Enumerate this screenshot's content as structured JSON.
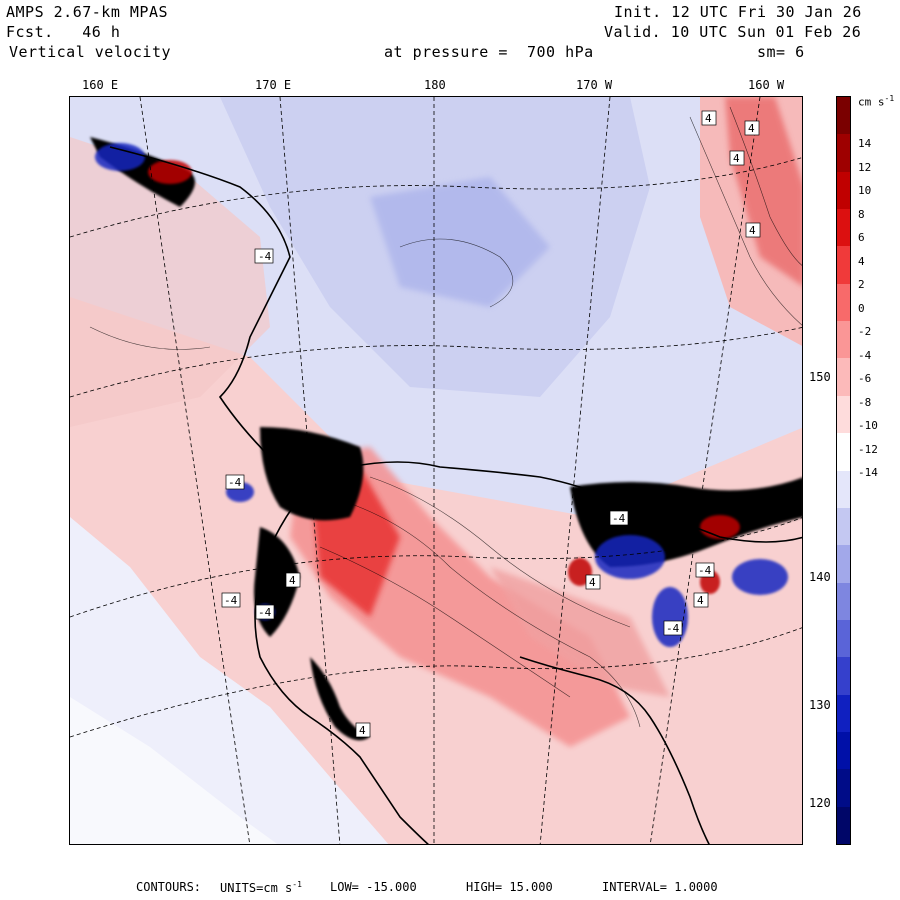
{
  "header": {
    "model": "AMPS 2.67-km MPAS",
    "forecast_label": "Fcst.",
    "forecast_value": "46 h",
    "field": "Vertical velocity",
    "init": "Init. 12 UTC Fri 30 Jan 26",
    "valid": "Valid. 10 UTC Sun 01 Feb 26",
    "pressure_label": "at pressure =",
    "pressure_value": "700 hPa",
    "smoothing": "sm= 6"
  },
  "longitude_labels": [
    "160 E",
    "170 E",
    "180",
    "170 W",
    "160 W"
  ],
  "latitude_labels": [
    "150 W",
    "140 W",
    "130 W",
    "120 W"
  ],
  "colorbar": {
    "units": "cm s",
    "units_exp": "-1",
    "ticks": [
      "14",
      "12",
      "10",
      "8",
      "6",
      "4",
      "2",
      "0",
      "-2",
      "-4",
      "-6",
      "-8",
      "-10",
      "-12",
      "-14"
    ],
    "colors": [
      "#7a0000",
      "#9e0000",
      "#c00000",
      "#dc1010",
      "#f03a3a",
      "#f86a6a",
      "#fa9696",
      "#fcbaba",
      "#fedcdc",
      "#ffffff",
      "#e4e6fa",
      "#c4c8f2",
      "#a2a8ea",
      "#7e86e0",
      "#5a64d8",
      "#3540cc",
      "#1020c0",
      "#0010a8",
      "#000c88",
      "#000668"
    ]
  },
  "footer": {
    "contours_label": "CONTOURS:",
    "units_label": "UNITS=cm s",
    "units_exp": "-1",
    "low": "LOW= -15.000",
    "high": "HIGH= 15.000",
    "interval": "INTERVAL= 1.0000"
  },
  "map_annotations": [
    "-4",
    "4",
    "4",
    "4",
    "4",
    "4",
    "4",
    "-4",
    "4",
    "4",
    "-4",
    "-4",
    "-4",
    "-4",
    "-4"
  ],
  "colors": {
    "positive": "#e03030",
    "negative": "#2a3ad0",
    "land": "#ffffff",
    "coast": "#000000"
  }
}
